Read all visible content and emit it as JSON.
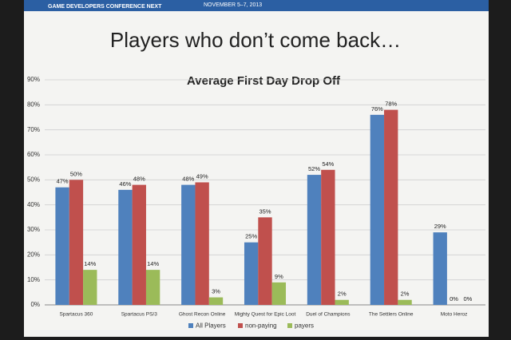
{
  "header": {
    "event": "GAME DEVELOPERS CONFERENCE NEXT",
    "dates": "NOVEMBER 5–7, 2013"
  },
  "slide_title": "Players who don’t come back…",
  "chart_data": {
    "type": "bar",
    "title": "Average First Day Drop Off",
    "categories": [
      "Spartacus 360",
      "Spartacus PS/3",
      "Ghost Recon Online",
      "Mighty Quest for Epic Loot",
      "Duel of Champions",
      "The Settlers Online",
      "Moto Heroz"
    ],
    "series": [
      {
        "name": "All Players",
        "color": "#4f81bd",
        "values": [
          47,
          46,
          48,
          25,
          52,
          76,
          29
        ],
        "value_labels": [
          "47%",
          "46%",
          "48%",
          "25%",
          "52%",
          "76%",
          "29%"
        ]
      },
      {
        "name": "non-paying",
        "color": "#c0504d",
        "values": [
          50,
          48,
          49,
          35,
          54,
          78,
          0
        ],
        "value_labels": [
          "50%",
          "48%",
          "49%",
          "35%",
          "54%",
          "78%",
          "0%"
        ]
      },
      {
        "name": "payers",
        "color": "#9bbb59",
        "values": [
          14,
          14,
          3,
          9,
          2,
          2,
          0
        ],
        "value_labels": [
          "14%",
          "14%",
          "3%",
          "9%",
          "2%",
          "2%",
          "0%"
        ]
      }
    ],
    "ylim": [
      0,
      90
    ],
    "yticks": [
      {
        "value": 0,
        "label": "0%"
      },
      {
        "value": 10,
        "label": "10%"
      },
      {
        "value": 20,
        "label": "20%"
      },
      {
        "value": 30,
        "label": "30%"
      },
      {
        "value": 40,
        "label": "40%"
      },
      {
        "value": 50,
        "label": "50%"
      },
      {
        "value": 60,
        "label": "60%"
      },
      {
        "value": 70,
        "label": "70%"
      },
      {
        "value": 80,
        "label": "80%"
      },
      {
        "value": 90,
        "label": "90%"
      }
    ],
    "grid": true,
    "legend": "bottom"
  }
}
